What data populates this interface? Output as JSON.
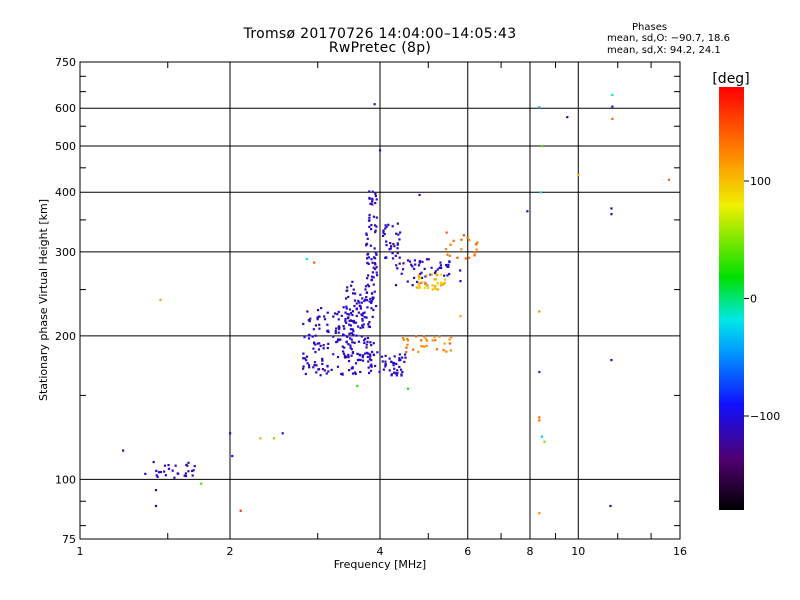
{
  "header": {
    "title": "Tromsø 20170726 14:04:00–14:05:43",
    "subtitle": "RwPretec (8p)"
  },
  "stats": {
    "heading": "Phases",
    "line_o": "mean, sd,O: −90.7, 18.6",
    "line_x": "mean, sd,X:  94.2, 24.1"
  },
  "colorbar": {
    "label": "[deg]",
    "ticks": [
      "100",
      "0",
      "−100"
    ],
    "tick_values": [
      100,
      0,
      -100
    ],
    "range": [
      -180,
      180
    ]
  },
  "chart_data": {
    "type": "scatter",
    "xlabel": "Frequency [MHz]",
    "ylabel": "Stationary phase Virtual Height [km]",
    "xscale": "log",
    "yscale": "log",
    "xlim": [
      1,
      16
    ],
    "ylim": [
      75,
      750
    ],
    "xticks": [
      1,
      2,
      4,
      6,
      8,
      10,
      16
    ],
    "xtick_labels": [
      "1",
      "2",
      "4",
      "6",
      "8",
      "10",
      "16"
    ],
    "yticks": [
      75,
      100,
      200,
      300,
      400,
      500,
      600,
      750
    ],
    "ytick_labels": [
      "75",
      "100",
      "200",
      "300",
      "400",
      "500",
      "600",
      "750"
    ],
    "grid": true,
    "color_scale": "phase [deg]",
    "clusters": [
      {
        "fx": [
          1.35,
          1.7
        ],
        "hy": [
          100,
          110
        ],
        "phase": -110,
        "n": 28
      },
      {
        "fx": [
          2.8,
          3.55
        ],
        "hy": [
          165,
          230
        ],
        "phase": -110,
        "n": 130
      },
      {
        "fx": [
          3.5,
          4.5
        ],
        "hy": [
          165,
          185
        ],
        "phase": -110,
        "n": 70
      },
      {
        "fx": [
          3.4,
          3.9
        ],
        "hy": [
          180,
          260
        ],
        "phase": -110,
        "n": 110
      },
      {
        "fx": [
          3.75,
          3.95
        ],
        "hy": [
          230,
          410
        ],
        "phase": -110,
        "n": 70
      },
      {
        "fx": [
          4.05,
          4.4
        ],
        "hy": [
          290,
          345
        ],
        "phase": -110,
        "n": 35
      },
      {
        "fx": [
          4.3,
          5.8
        ],
        "hy": [
          255,
          290
        ],
        "phase": -110,
        "n": 55
      },
      {
        "fx": [
          4.7,
          5.4
        ],
        "hy": [
          250,
          270
        ],
        "phase": 100,
        "n": 40
      },
      {
        "fx": [
          4.4,
          5.6
        ],
        "hy": [
          185,
          200
        ],
        "phase": 130,
        "n": 30
      },
      {
        "fx": [
          5.4,
          6.3
        ],
        "hy": [
          290,
          330
        ],
        "phase": 135,
        "n": 20
      }
    ],
    "points": [
      {
        "x": 1.22,
        "y": 115,
        "phase": -120
      },
      {
        "x": 1.45,
        "y": 238,
        "phase": 110
      },
      {
        "x": 1.42,
        "y": 95,
        "phase": -100
      },
      {
        "x": 1.42,
        "y": 88,
        "phase": -95
      },
      {
        "x": 1.75,
        "y": 98,
        "phase": 40
      },
      {
        "x": 2.0,
        "y": 125,
        "phase": -100
      },
      {
        "x": 2.02,
        "y": 112,
        "phase": -90
      },
      {
        "x": 2.1,
        "y": 86,
        "phase": 160
      },
      {
        "x": 2.3,
        "y": 122,
        "phase": 110
      },
      {
        "x": 2.45,
        "y": 122,
        "phase": 50
      },
      {
        "x": 2.55,
        "y": 125,
        "phase": -100
      },
      {
        "x": 2.85,
        "y": 290,
        "phase": -20
      },
      {
        "x": 2.95,
        "y": 285,
        "phase": 140
      },
      {
        "x": 3.6,
        "y": 157,
        "phase": 30
      },
      {
        "x": 3.9,
        "y": 612,
        "phase": -110
      },
      {
        "x": 4.0,
        "y": 490,
        "phase": -100
      },
      {
        "x": 4.55,
        "y": 155,
        "phase": 10
      },
      {
        "x": 4.8,
        "y": 395,
        "phase": -90
      },
      {
        "x": 5.8,
        "y": 220,
        "phase": 110
      },
      {
        "x": 7.9,
        "y": 365,
        "phase": -110
      },
      {
        "x": 8.35,
        "y": 603,
        "phase": -40
      },
      {
        "x": 8.45,
        "y": 500,
        "phase": 40
      },
      {
        "x": 8.4,
        "y": 400,
        "phase": -20
      },
      {
        "x": 8.35,
        "y": 225,
        "phase": 120
      },
      {
        "x": 8.35,
        "y": 168,
        "phase": -80
      },
      {
        "x": 8.35,
        "y": 135,
        "phase": 140
      },
      {
        "x": 8.35,
        "y": 133,
        "phase": 140
      },
      {
        "x": 8.45,
        "y": 123,
        "phase": -30
      },
      {
        "x": 8.55,
        "y": 120,
        "phase": 50
      },
      {
        "x": 8.35,
        "y": 85,
        "phase": 120
      },
      {
        "x": 9.5,
        "y": 575,
        "phase": -110
      },
      {
        "x": 10.0,
        "y": 435,
        "phase": 110
      },
      {
        "x": 11.7,
        "y": 640,
        "phase": -20
      },
      {
        "x": 11.7,
        "y": 605,
        "phase": -110
      },
      {
        "x": 11.7,
        "y": 570,
        "phase": 140
      },
      {
        "x": 11.65,
        "y": 370,
        "phase": -110
      },
      {
        "x": 11.65,
        "y": 360,
        "phase": -110
      },
      {
        "x": 11.65,
        "y": 178,
        "phase": -100
      },
      {
        "x": 11.6,
        "y": 88,
        "phase": -110
      },
      {
        "x": 15.2,
        "y": 425,
        "phase": 140
      }
    ]
  }
}
